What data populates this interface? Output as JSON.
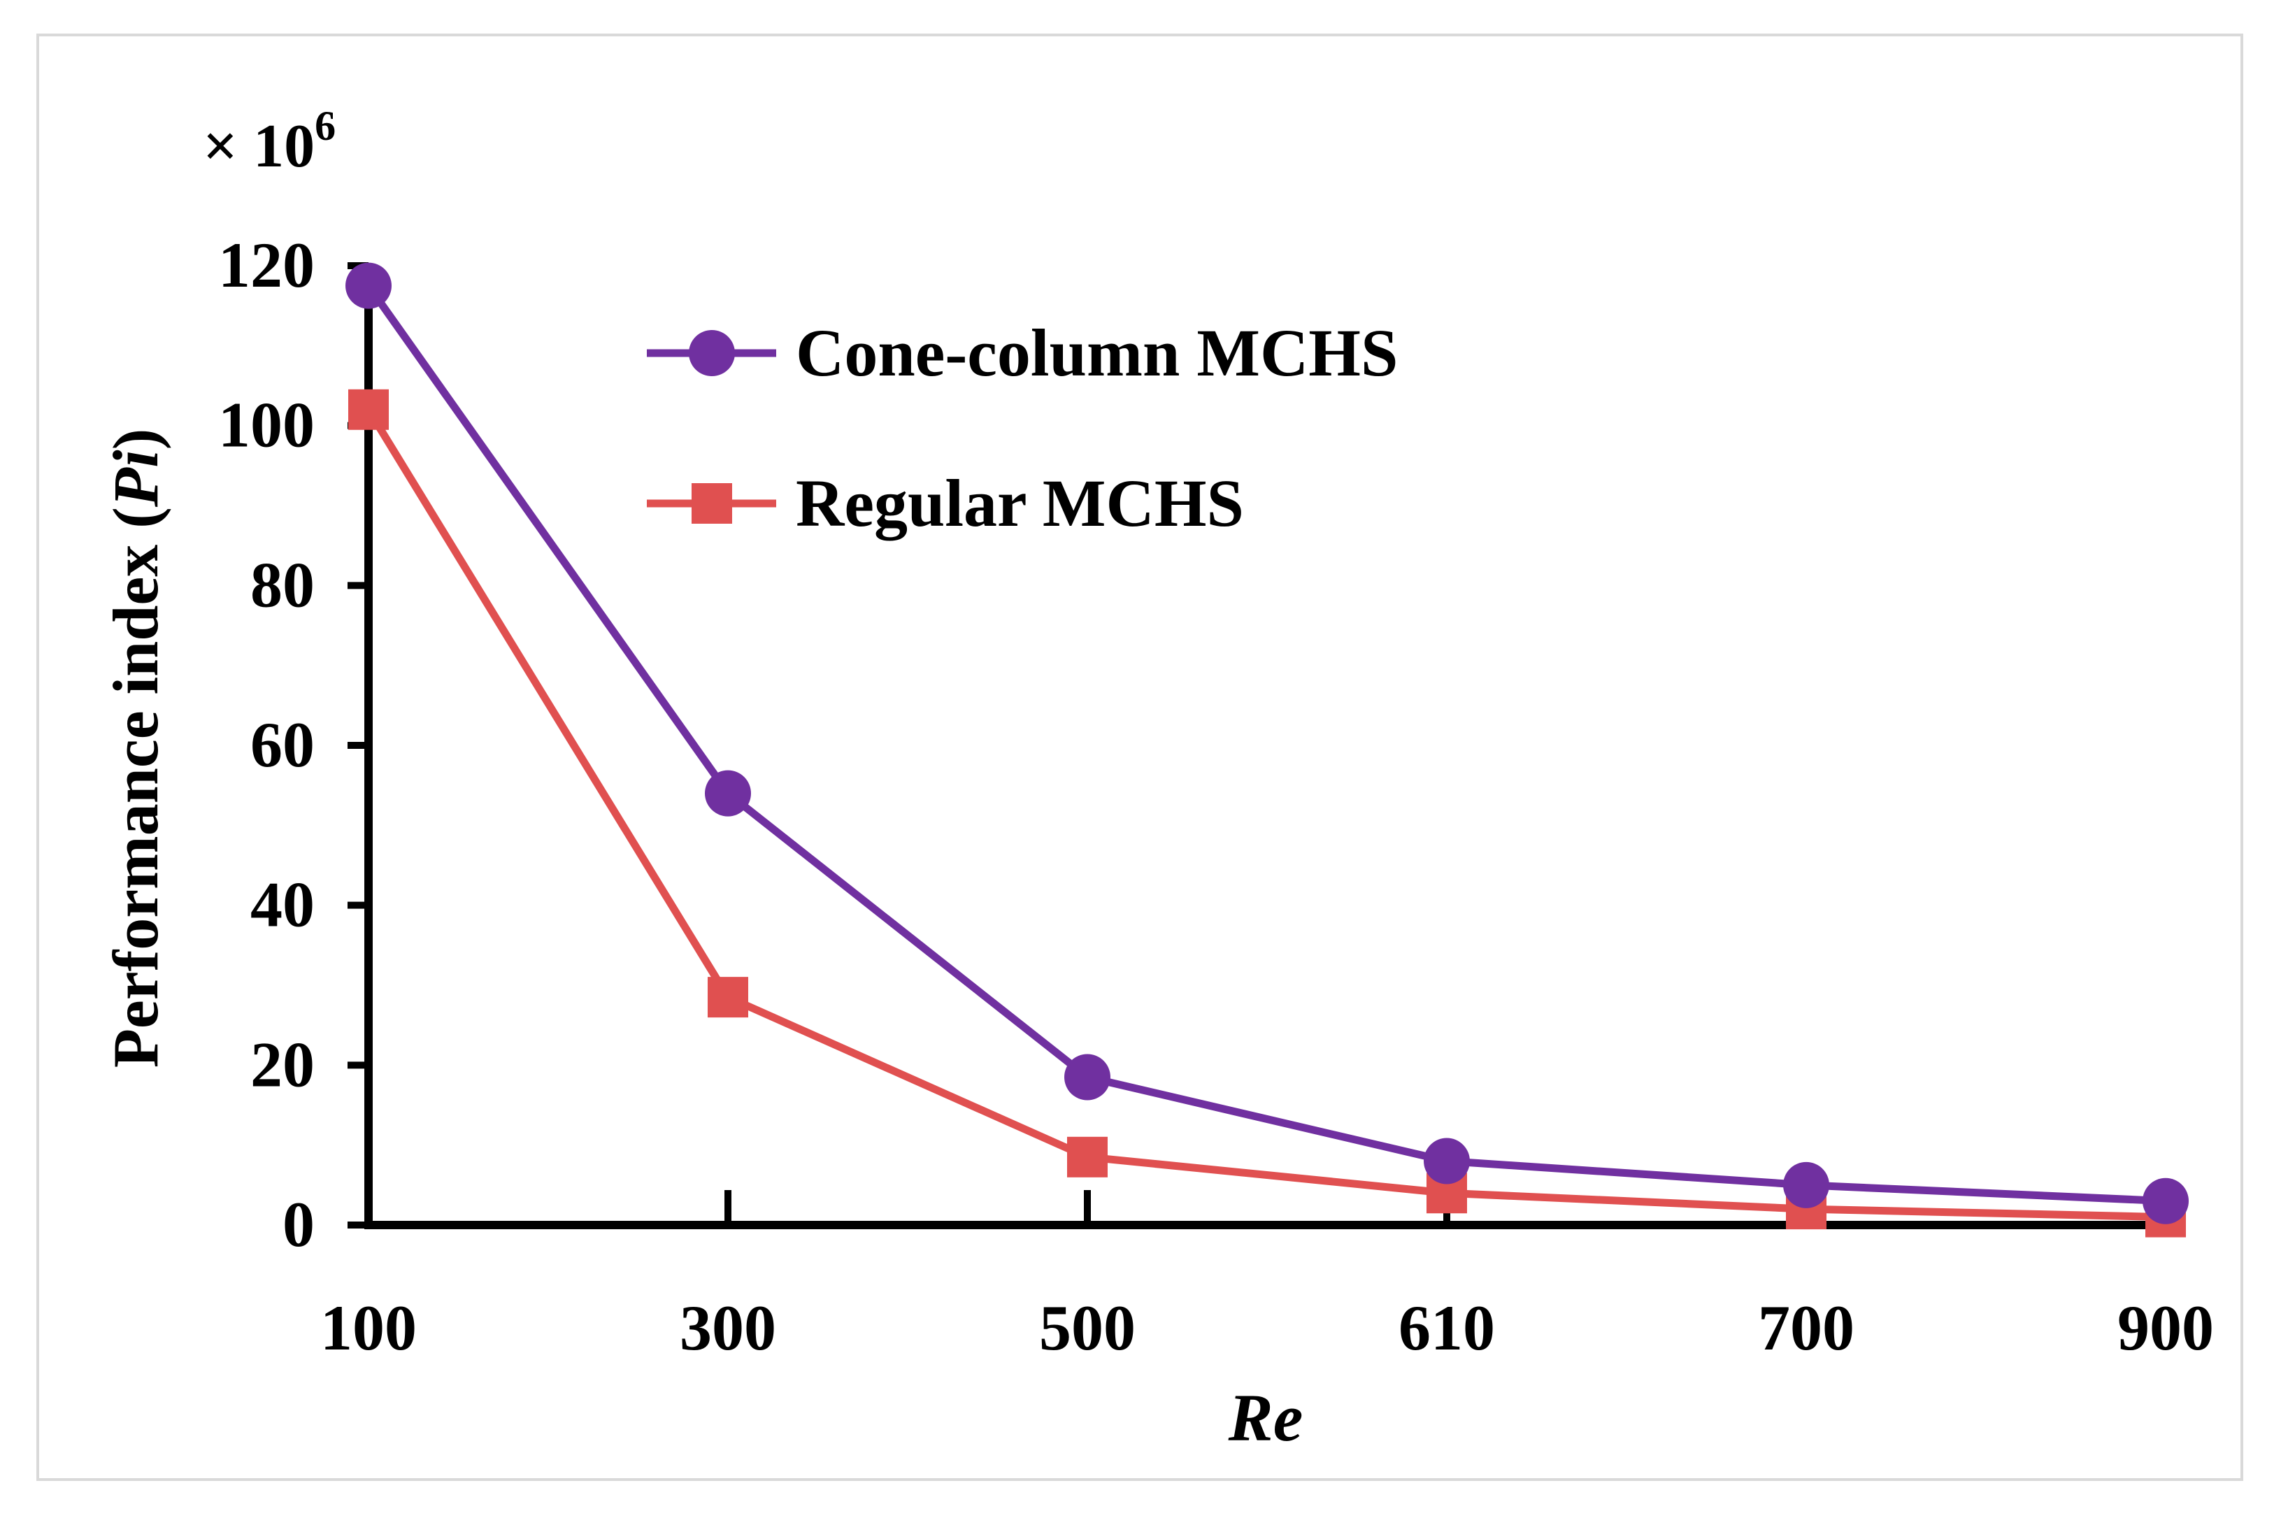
{
  "chart_data": {
    "type": "line",
    "title": "",
    "xlabel": "Re",
    "ylabel_main": "Performance index (",
    "ylabel_sym": "Pi",
    "ylabel_close": ")",
    "multiplier": "× 10",
    "multiplier_exp": "6",
    "categories": [
      "100",
      "300",
      "500",
      "610",
      "700",
      "900"
    ],
    "ylim": [
      0,
      120
    ],
    "yticks": [
      "0",
      "20",
      "40",
      "60",
      "80",
      "100",
      "120"
    ],
    "grid": false,
    "legend_position": "top-center",
    "series": [
      {
        "name": "Cone-column MCHS",
        "marker": "circle",
        "color": "#7030a0",
        "values": [
          117.5,
          54,
          18.5,
          8,
          5,
          3
        ]
      },
      {
        "name": "Regular MCHS",
        "marker": "square",
        "color": "#e05050",
        "values": [
          102,
          28.5,
          8.5,
          4,
          2,
          1
        ]
      }
    ]
  }
}
